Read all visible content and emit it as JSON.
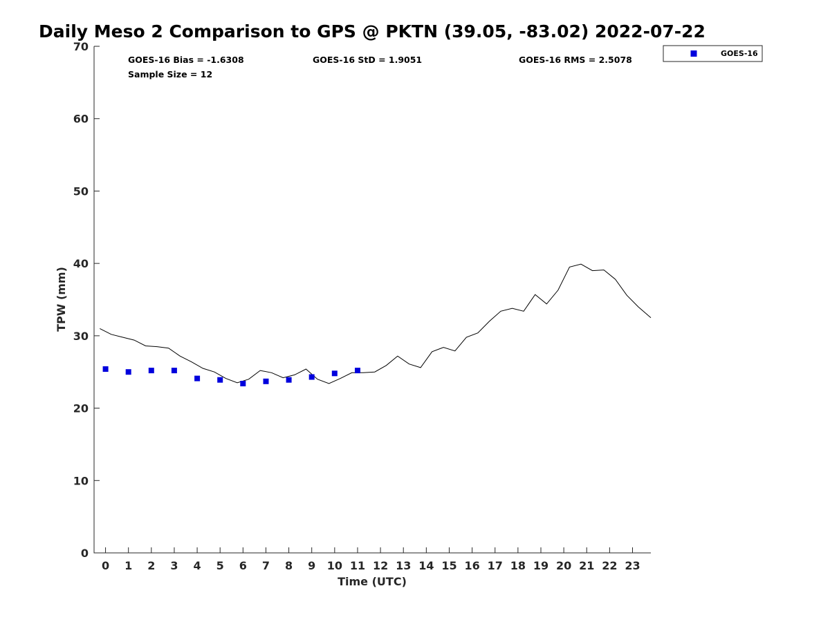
{
  "chart_data": {
    "type": "line",
    "title": "Daily Meso 2 Comparison to GPS @ PKTN (39.05, -83.02) 2022-07-22",
    "xlabel": "Time (UTC)",
    "ylabel": "TPW (mm)",
    "xlim": [
      -0.5,
      23.8
    ],
    "ylim": [
      0,
      70
    ],
    "xticks": [
      0,
      1,
      2,
      3,
      4,
      5,
      6,
      7,
      8,
      9,
      10,
      11,
      12,
      13,
      14,
      15,
      16,
      17,
      18,
      19,
      20,
      21,
      22,
      23
    ],
    "yticks": [
      0,
      10,
      20,
      30,
      40,
      50,
      60,
      70
    ],
    "grid": false,
    "stats": {
      "bias": "GOES-16 Bias = -1.6308",
      "std": "GOES-16 StD = 1.9051",
      "rms": "GOES-16 RMS = 2.5078",
      "sample": "Sample Size = 12"
    },
    "legend": {
      "position": "top-right, outside",
      "entries": [
        "GOES-16"
      ]
    },
    "series": [
      {
        "name": "GOES-16",
        "kind": "scatter",
        "marker": "square",
        "color": "#0000dd",
        "x": [
          0,
          1,
          2,
          3,
          4,
          5,
          6,
          7,
          8,
          9,
          10,
          11
        ],
        "y": [
          25.4,
          25.0,
          25.2,
          25.2,
          24.1,
          23.9,
          23.4,
          23.7,
          23.9,
          24.3,
          24.8,
          25.2
        ]
      },
      {
        "kind": "line",
        "color": "#000000",
        "x": [
          -0.25,
          0.25,
          0.75,
          1.25,
          1.75,
          2.25,
          2.75,
          3.25,
          3.75,
          4.25,
          4.75,
          5.25,
          5.75,
          6.25,
          6.75,
          7.25,
          7.75,
          8.25,
          8.75,
          9.25,
          9.75,
          10.25,
          10.75,
          11.25,
          11.75,
          12.25,
          12.75,
          13.25,
          13.75,
          14.25,
          14.75,
          15.25,
          15.75,
          16.25,
          16.75,
          17.25,
          17.75,
          18.25,
          18.75,
          19.25,
          19.75,
          20.25,
          20.75,
          21.25,
          21.75,
          22.25,
          22.75,
          23.25,
          23.8
        ],
        "y": [
          31.0,
          30.2,
          29.8,
          29.4,
          28.6,
          28.5,
          28.3,
          27.2,
          26.4,
          25.5,
          25.0,
          24.1,
          23.5,
          24.0,
          25.2,
          24.9,
          24.2,
          24.6,
          25.4,
          24.0,
          23.4,
          24.1,
          24.9,
          24.9,
          25.0,
          25.9,
          27.2,
          26.1,
          25.6,
          27.8,
          28.4,
          27.9,
          29.8,
          30.4,
          32.0,
          33.4,
          33.8,
          33.4,
          35.7,
          34.4,
          36.3,
          39.5,
          39.9,
          39.0,
          39.1,
          37.8,
          35.6,
          34.0,
          32.5
        ]
      }
    ]
  }
}
